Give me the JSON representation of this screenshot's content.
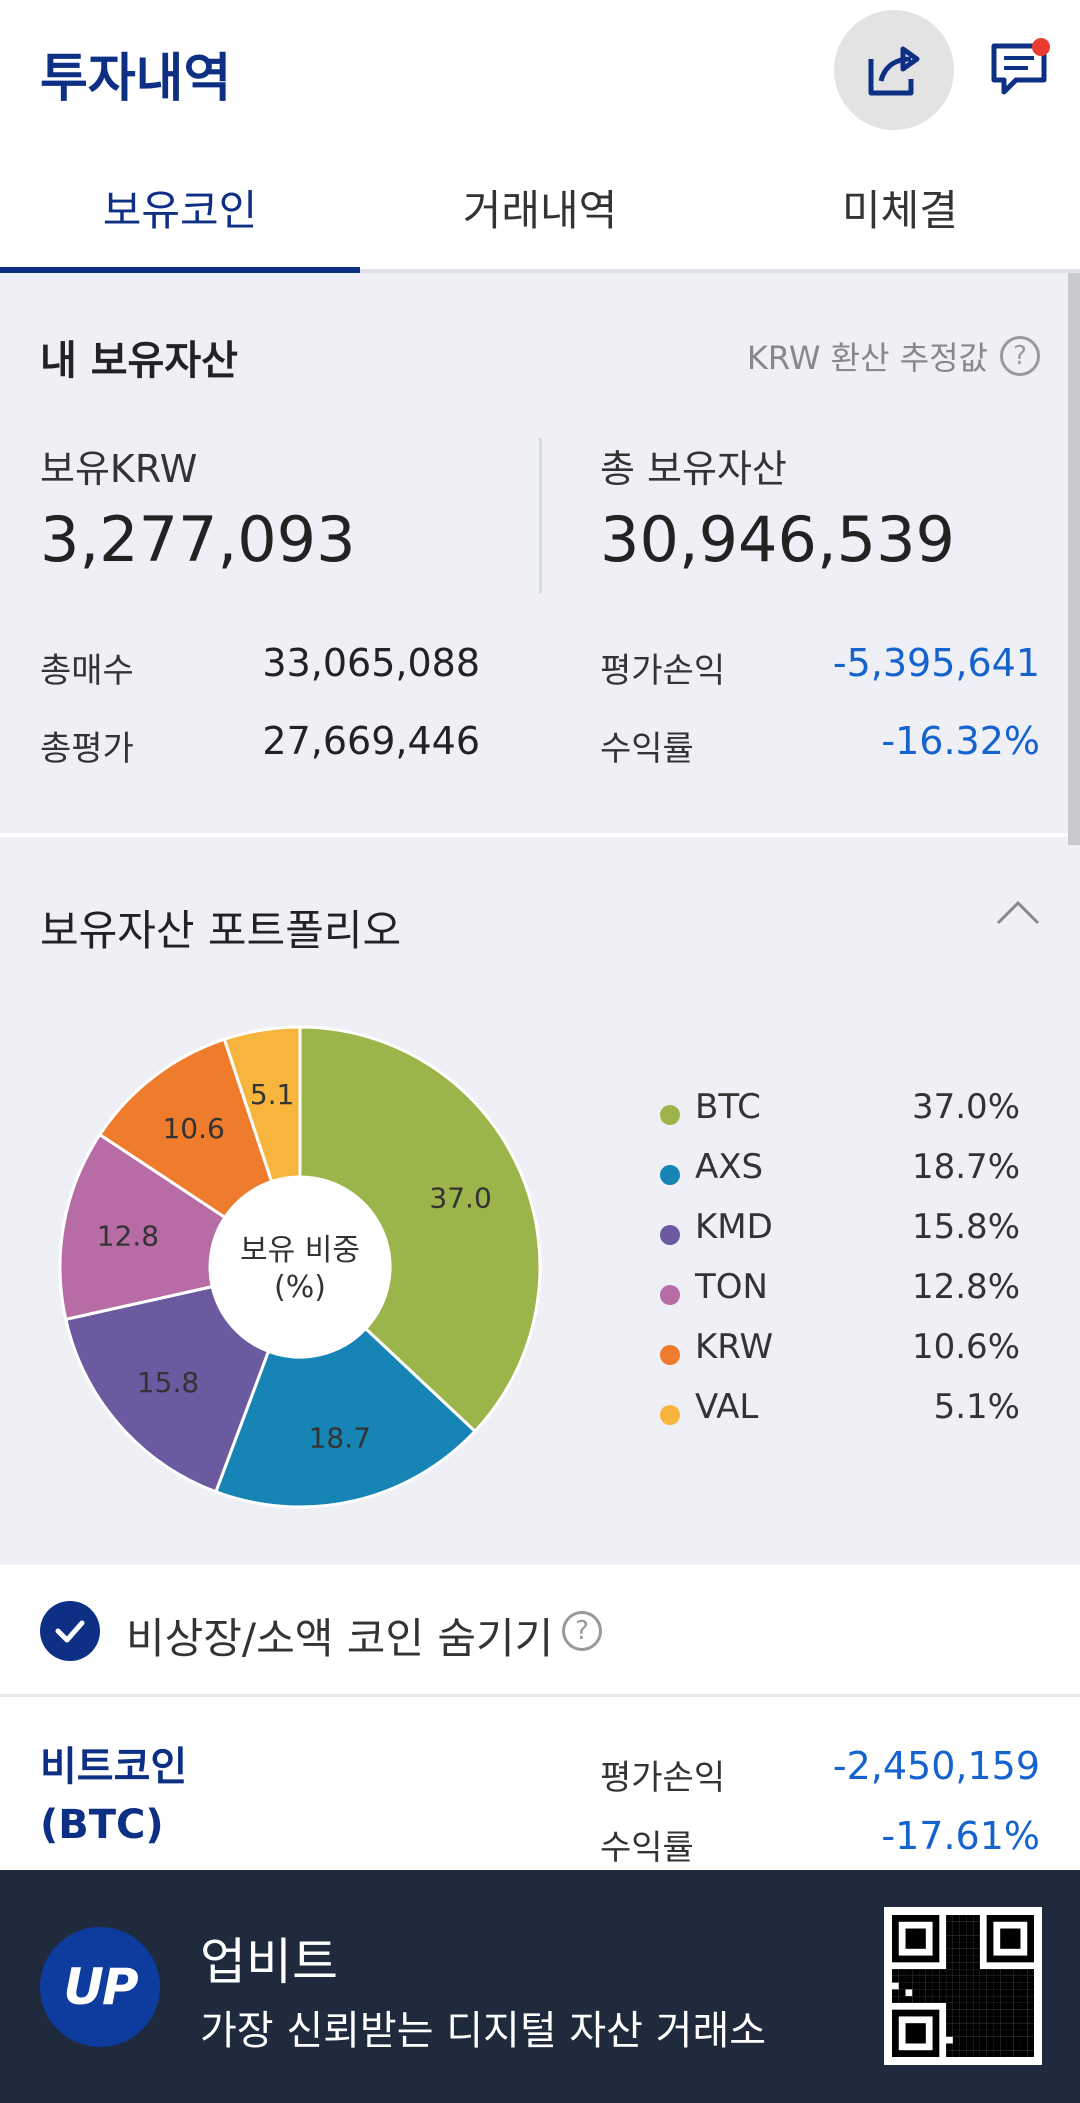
{
  "header": {
    "title": "투자내역",
    "share_icon": "share-icon",
    "chat_icon": "chat-icon"
  },
  "tabs": [
    {
      "label": "보유코인",
      "active": true
    },
    {
      "label": "거래내역",
      "active": false
    },
    {
      "label": "미체결",
      "active": false
    }
  ],
  "summary": {
    "title": "내 보유자산",
    "krw_note": "KRW 환산 추정값",
    "krw_label": "보유KRW",
    "krw_value": "3,277,093",
    "total_label": "총 보유자산",
    "total_value": "30,946,539",
    "buy_label": "총매수",
    "buy_value": "33,065,088",
    "eval_label": "총평가",
    "eval_value": "27,669,446",
    "pnl_label": "평가손익",
    "pnl_value": "-5,395,641",
    "rate_label": "수익률",
    "rate_value": "-16.32%",
    "negative_color": "#1463cf"
  },
  "portfolio": {
    "title": "보유자산 포트폴리오",
    "center_line1": "보유 비중",
    "center_line2": "(%)"
  },
  "chart_data": {
    "type": "pie",
    "categories": [
      "BTC",
      "AXS",
      "KMD",
      "TON",
      "KRW",
      "VAL"
    ],
    "values": [
      37.0,
      18.7,
      15.8,
      12.8,
      10.6,
      5.1
    ],
    "labels": [
      "37.0",
      "18.7",
      "15.8",
      "12.8",
      "10.6",
      "5.1"
    ],
    "legend_pct": [
      "37.0%",
      "18.7%",
      "15.8%",
      "12.8%",
      "10.6%",
      "5.1%"
    ],
    "colors": [
      "#9cb54a",
      "#1784b6",
      "#6b5aa0",
      "#b76ca6",
      "#ef7c2c",
      "#f7b53d"
    ],
    "legend_placement": "right"
  },
  "hide_option": {
    "label": "비상장/소액 코인 숨기기",
    "checked": true
  },
  "coin": {
    "name_line1": "비트코인",
    "name_line2": "(BTC)",
    "pnl_label": "평가손익",
    "pnl_value": "-2,450,159",
    "rate_label": "수익률",
    "rate_value": "-17.61%"
  },
  "banner": {
    "logo_text": "UP",
    "title": "업비트",
    "subtitle": "가장 신뢰받는 디지털 자산 거래소"
  }
}
